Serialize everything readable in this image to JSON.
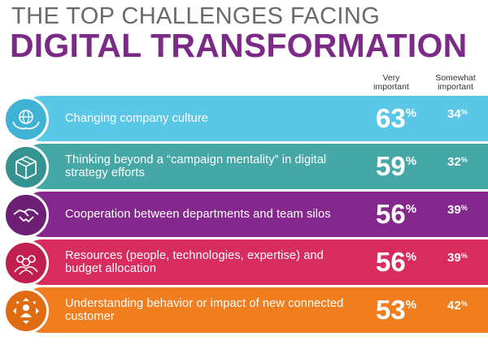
{
  "header": {
    "line1": "THE TOP CHALLENGES FACING",
    "line2": "DIGITAL TRANSFORMATION"
  },
  "columns": {
    "very_line1": "Very",
    "very_line2": "important",
    "somewhat_line1": "Somewhat",
    "somewhat_line2": "important"
  },
  "colors": {
    "title_gray": "#6a6a6a",
    "title_purple": "#7b2b86"
  },
  "chart_data": {
    "type": "table",
    "columns": [
      "Very important",
      "Somewhat important"
    ],
    "unit": "%",
    "rows": [
      {
        "label": "Changing company culture",
        "very": 63,
        "somewhat": 34,
        "icon": "globe-handshake-icon",
        "band_color": "#5bc7e6",
        "medallion_color": "#3fb2d6"
      },
      {
        "label": "Thinking beyond a “campaign mentality” in digital strategy efforts",
        "very": 59,
        "somewhat": 32,
        "icon": "box-icon",
        "band_color": "#45a8a6",
        "medallion_color": "#349390"
      },
      {
        "label": "Cooperation between departments and team silos",
        "very": 56,
        "somewhat": 39,
        "icon": "handshake-icon",
        "band_color": "#85288e",
        "medallion_color": "#6d1f76"
      },
      {
        "label": "Resources (people, technologies, expertise) and budget allocation",
        "very": 56,
        "somewhat": 39,
        "icon": "people-icon",
        "band_color": "#d92c5e",
        "medallion_color": "#c01f4f"
      },
      {
        "label": "Understanding behavior or impact of new connected customer",
        "very": 53,
        "somewhat": 42,
        "icon": "customer-arrows-icon",
        "band_color": "#f07d1e",
        "medallion_color": "#e06b10"
      }
    ]
  }
}
